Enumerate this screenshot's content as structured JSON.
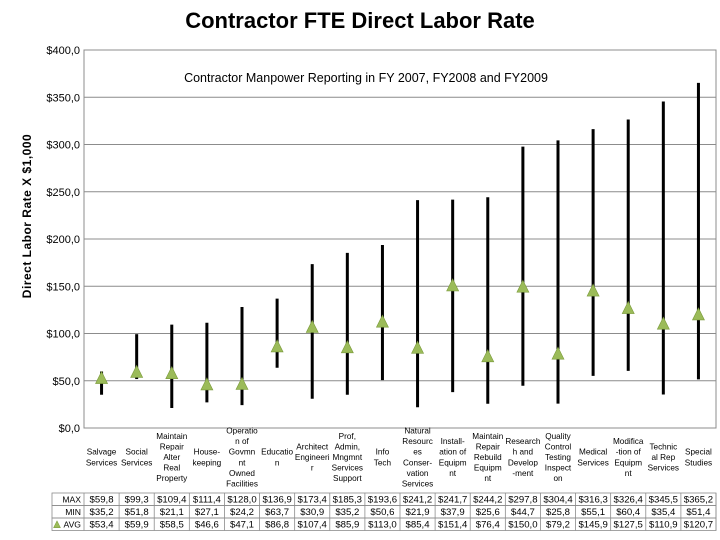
{
  "chart_data": {
    "type": "stock-range",
    "title": "Contractor FTE Direct Labor Rate",
    "subtitle": "Contractor Manpower Reporting in FY 2007, FY2008 and FY2009",
    "ylabel": "Direct Labor Rate X $1,000",
    "ylim": [
      0,
      400
    ],
    "yticks": [
      "$0,0",
      "$50,0",
      "$100,0",
      "$150,0",
      "$200,0",
      "$250,0",
      "$300,0",
      "$350,0",
      "$400,0"
    ],
    "categories": [
      [
        "Salvage",
        "Services"
      ],
      [
        "Social",
        "Services"
      ],
      [
        "Maintain",
        "Repair",
        "Alter",
        "Real",
        "Property"
      ],
      [
        "House-",
        "keeping"
      ],
      [
        "Operatio",
        "n of",
        "Govmn",
        "nt",
        "Owned",
        "Facilities"
      ],
      [
        "Educatio",
        "n"
      ],
      [
        "Architect",
        "Engineeri",
        "r"
      ],
      [
        "Prof,",
        "Admin,",
        "Mngmnt",
        "Services",
        "Support"
      ],
      [
        "Info",
        "Tech"
      ],
      [
        "Natural",
        "Resourc",
        "es",
        "Conser-",
        "vation",
        "Services"
      ],
      [
        "Install-",
        "ation of",
        "Equipm",
        "nt"
      ],
      [
        "Maintain",
        "Repair",
        "Rebuild",
        "Equipm",
        "nt"
      ],
      [
        "Research",
        "h and",
        "Develop",
        "-ment"
      ],
      [
        "Quality",
        "Control",
        "Testing",
        "Inspect",
        "on"
      ],
      [
        "Medical",
        "Services"
      ],
      [
        "Modifica",
        "-tion of",
        "Equipm",
        "nt"
      ],
      [
        "Technic",
        "al Rep",
        "Services"
      ],
      [
        "Special",
        "Studies"
      ]
    ],
    "series": [
      {
        "name": "MAX",
        "labels": [
          "$59,8",
          "$99,3",
          "$109,4",
          "$111,4",
          "$128,0",
          "$136,9",
          "$173,4",
          "$185,3",
          "$193,6",
          "$241,2",
          "$241,7",
          "$244,2",
          "$297,8",
          "$304,4",
          "$316,3",
          "$326,4",
          "$345,5",
          "$365,2"
        ],
        "values": [
          59.8,
          99.3,
          109.4,
          111.4,
          128.0,
          136.9,
          173.4,
          185.3,
          193.6,
          241.2,
          241.7,
          244.2,
          297.8,
          304.4,
          316.3,
          326.4,
          345.5,
          365.2
        ]
      },
      {
        "name": "MIN",
        "labels": [
          "$35,2",
          "$51,8",
          "$21,1",
          "$27,1",
          "$24,2",
          "$63,7",
          "$30,9",
          "$35,2",
          "$50,6",
          "$21,9",
          "$37,9",
          "$25,6",
          "$44,7",
          "$25,8",
          "$55,1",
          "$60,4",
          "$35,4",
          "$51,4"
        ],
        "values": [
          35.2,
          51.8,
          21.1,
          27.1,
          24.2,
          63.7,
          30.9,
          35.2,
          50.6,
          21.9,
          37.9,
          25.6,
          44.7,
          25.8,
          55.1,
          60.4,
          35.4,
          51.4
        ]
      },
      {
        "name": "AVG",
        "labels": [
          "$53,4",
          "$59,9",
          "$58,5",
          "$46,6",
          "$47,1",
          "$86,8",
          "$107,4",
          "$85,9",
          "$113,0",
          "$85,4",
          "$151,4",
          "$76,4",
          "$150,0",
          "$79,2",
          "$145,9",
          "$127,5",
          "$110,9",
          "$120,7"
        ],
        "values": [
          53.4,
          59.9,
          58.5,
          46.6,
          47.1,
          86.8,
          107.4,
          85.9,
          113.0,
          85.4,
          151.4,
          76.4,
          150.0,
          79.2,
          145.9,
          127.5,
          110.9,
          120.7
        ]
      }
    ],
    "colors": {
      "range_line": "#000000",
      "avg_marker": "#9bbb59",
      "avg_marker_stroke": "#7a9a3a",
      "grid": "#8c8c8c"
    }
  }
}
